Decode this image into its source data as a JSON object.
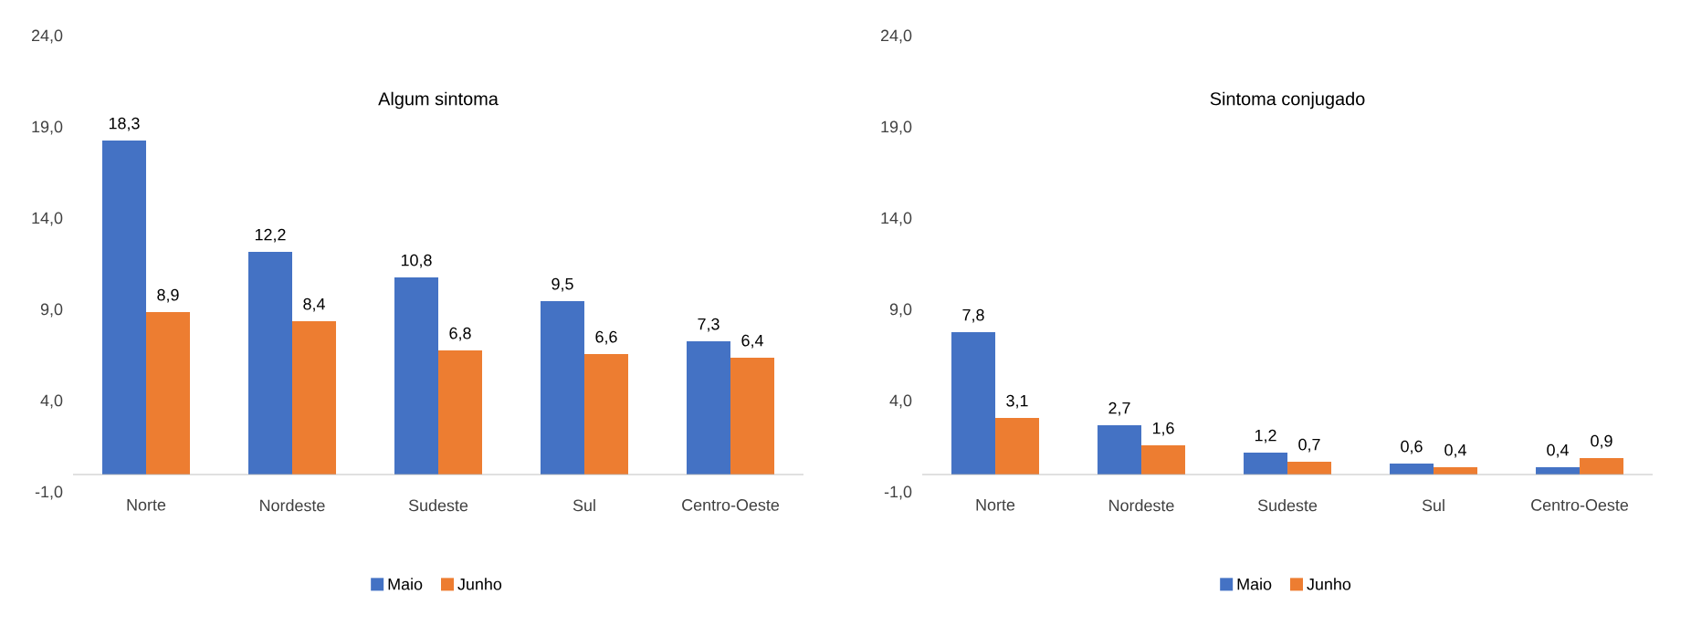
{
  "chart_data": [
    {
      "type": "bar",
      "title": "Algum sintoma",
      "categories": [
        "Norte",
        "Nordeste",
        "Sudeste",
        "Sul",
        "Centro-Oeste"
      ],
      "series": [
        {
          "name": "Maio",
          "color": "#4472c4",
          "values": [
            18.3,
            12.2,
            10.8,
            9.5,
            7.3
          ],
          "value_labels": [
            "18,3",
            "12,2",
            "10,8",
            "9,5",
            "7,3"
          ]
        },
        {
          "name": "Junho",
          "color": "#ed7d31",
          "values": [
            8.9,
            8.4,
            6.8,
            6.6,
            6.4
          ],
          "value_labels": [
            "8,9",
            "8,4",
            "6,8",
            "6,6",
            "6,4"
          ]
        }
      ],
      "ylim": [
        -1,
        24
      ],
      "yticks": [
        {
          "value": -1,
          "label": "-1,0"
        },
        {
          "value": 4,
          "label": "4,0"
        },
        {
          "value": 9,
          "label": "9,0"
        },
        {
          "value": 14,
          "label": "14,0"
        },
        {
          "value": 19,
          "label": "19,0"
        },
        {
          "value": 24,
          "label": "24,0"
        }
      ],
      "legend": "bottom",
      "grid": false
    },
    {
      "type": "bar",
      "title": "Sintoma conjugado",
      "categories": [
        "Norte",
        "Nordeste",
        "Sudeste",
        "Sul",
        "Centro-Oeste"
      ],
      "series": [
        {
          "name": "Maio",
          "color": "#4472c4",
          "values": [
            7.8,
            2.7,
            1.2,
            0.6,
            0.4
          ],
          "value_labels": [
            "7,8",
            "2,7",
            "1,2",
            "0,6",
            "0,4"
          ]
        },
        {
          "name": "Junho",
          "color": "#ed7d31",
          "values": [
            3.1,
            1.6,
            0.7,
            0.4,
            0.9
          ],
          "value_labels": [
            "3,1",
            "1,6",
            "0,7",
            "0,4",
            "0,9"
          ]
        }
      ],
      "ylim": [
        -1,
        24
      ],
      "yticks": [
        {
          "value": -1,
          "label": "-1,0"
        },
        {
          "value": 4,
          "label": "4,0"
        },
        {
          "value": 9,
          "label": "9,0"
        },
        {
          "value": 14,
          "label": "14,0"
        },
        {
          "value": 19,
          "label": "19,0"
        },
        {
          "value": 24,
          "label": "24,0"
        }
      ],
      "legend": "bottom",
      "grid": false
    }
  ]
}
